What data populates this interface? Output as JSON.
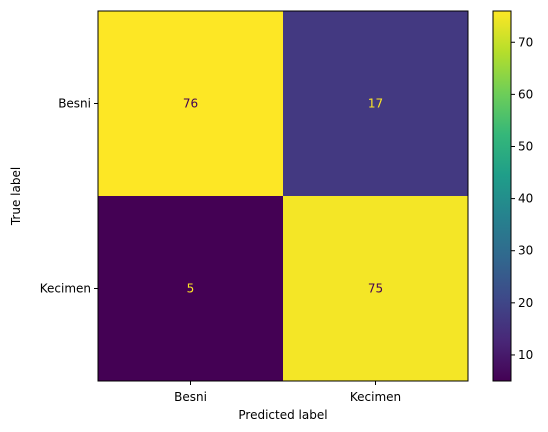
{
  "chart_data": {
    "type": "heatmap",
    "title": "",
    "xlabel": "Predicted label",
    "ylabel": "True label",
    "x_categories": [
      "Besni",
      "Kecimen"
    ],
    "y_categories": [
      "Besni",
      "Kecimen"
    ],
    "values": [
      [
        76,
        17
      ],
      [
        5,
        75
      ]
    ],
    "colormap": "viridis",
    "colorbar": {
      "range": [
        5,
        76
      ],
      "ticks": [
        10,
        20,
        30,
        40,
        50,
        60,
        70
      ]
    },
    "grid": false
  },
  "colors": {
    "text_on_dark": "#fde725",
    "text_on_light": "#440154"
  }
}
